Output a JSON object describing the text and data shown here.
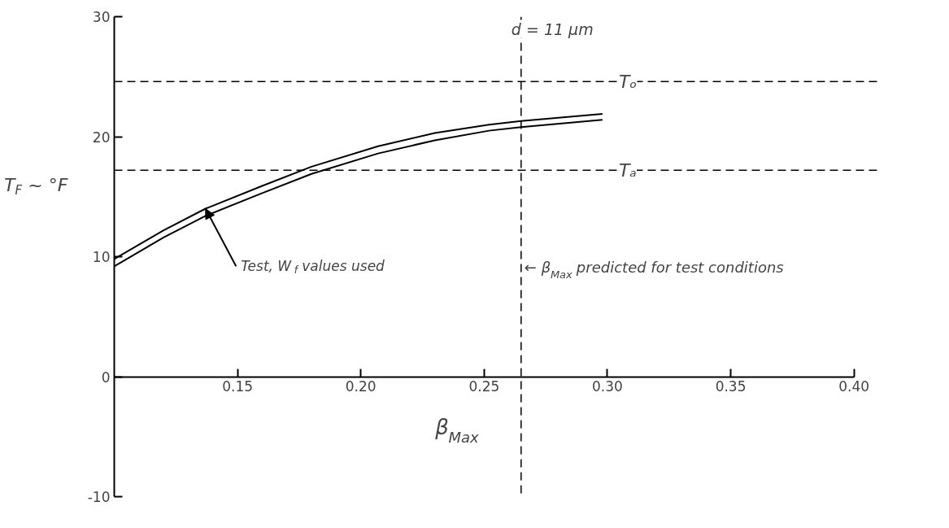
{
  "chart_data": {
    "type": "line",
    "xlabel": "β$_{Max}$",
    "ylabel": "T$_{F}$ ~ °F",
    "xlim": [
      0.1,
      0.41
    ],
    "xticks": [
      0.15,
      {
        "value": 0.2,
        "label": "0.20"
      },
      0.25,
      {
        "value": 0.3,
        "label": "0.30"
      },
      0.35,
      {
        "value": 0.4,
        "label": "0.40"
      }
    ],
    "ylim": [
      -10,
      30
    ],
    "yticks": [
      -10,
      0,
      10,
      20,
      30
    ],
    "series": [
      {
        "color": "#000000",
        "x": [
          0.1,
          0.12,
          0.137,
          0.16,
          0.18,
          0.207,
          0.23,
          0.252,
          0.265,
          0.298
        ],
        "values": [
          9.8,
          12.2,
          14.0,
          15.9,
          17.5,
          19.2,
          20.3,
          21.0,
          21.3,
          21.9
        ]
      },
      {
        "color": "#000000",
        "x": [
          0.1,
          0.12,
          0.137,
          0.16,
          0.18,
          0.207,
          0.23,
          0.252,
          0.265,
          0.298
        ],
        "values": [
          9.2,
          11.6,
          13.4,
          15.3,
          16.9,
          18.6,
          19.7,
          20.5,
          20.8,
          21.4
        ]
      }
    ],
    "ref_lines": [
      {
        "axis": "y",
        "value": 24.6,
        "label": "Tₒ",
        "line_style": "dashed",
        "color": "#000000"
      },
      {
        "axis": "y",
        "value": 17.2,
        "label": "Tₐ",
        "line_style": "dashed",
        "color": "#000000"
      },
      {
        "axis": "x",
        "value": 0.265,
        "label": "← β$_{Max}$ predicted for test conditions",
        "line_style": "dashed",
        "color": "#000000"
      }
    ],
    "annotations": [
      {
        "text": "Test, W$_{f}$ values used",
        "x": 0.137,
        "y": 14.0
      },
      "d = 11 μm"
    ],
    "grid": false,
    "marker": "none",
    "line_style": "solid"
  }
}
